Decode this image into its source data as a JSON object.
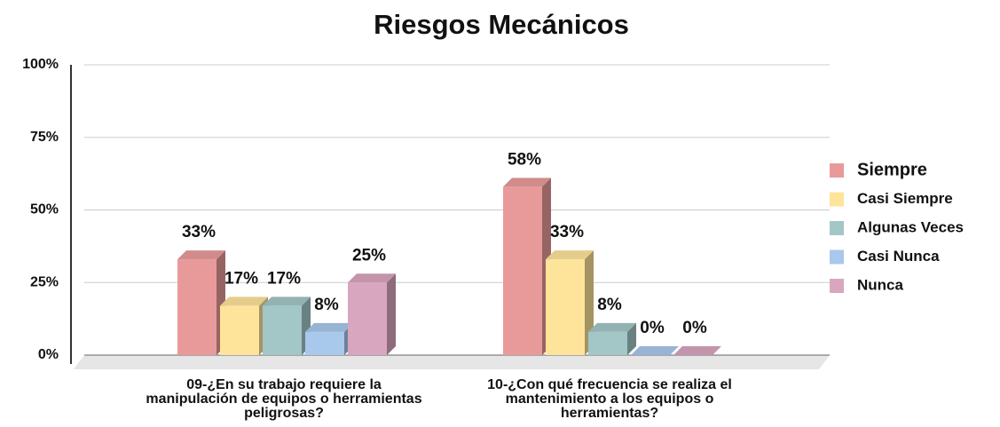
{
  "chart_data": {
    "type": "bar3d",
    "title": "Riesgos Mecánicos",
    "categories": [
      "09-¿En su trabajo requiere la manipulación de equipos o herramientas peligrosas?",
      "10-¿Con qué frecuencia se realiza el mantenimiento a los equipos o herramientas?"
    ],
    "series": [
      {
        "name": "Siempre",
        "color": "#e89a9a",
        "values": [
          33,
          58
        ],
        "value_labels": [
          "33%",
          "58%"
        ]
      },
      {
        "name": "Casi Siempre",
        "color": "#fde49a",
        "values": [
          17,
          33
        ],
        "value_labels": [
          "17%",
          "33%"
        ]
      },
      {
        "name": "Algunas Veces",
        "color": "#a3c6c6",
        "values": [
          17,
          8
        ],
        "value_labels": [
          "17%",
          "8%"
        ]
      },
      {
        "name": "Casi Nunca",
        "color": "#a8c8ec",
        "values": [
          8,
          0
        ],
        "value_labels": [
          "8%",
          "0%"
        ]
      },
      {
        "name": "Nunca",
        "color": "#d9a6bf",
        "values": [
          25,
          0
        ],
        "value_labels": [
          "25%",
          "0%"
        ]
      }
    ],
    "ylim": [
      0,
      100
    ],
    "yticks": [
      {
        "value": 0,
        "label": "0%"
      },
      {
        "value": 25,
        "label": "25%"
      },
      {
        "value": 50,
        "label": "50%"
      },
      {
        "value": 75,
        "label": "75%"
      },
      {
        "value": 100,
        "label": "100%"
      }
    ],
    "grid": true,
    "legend": "right"
  }
}
